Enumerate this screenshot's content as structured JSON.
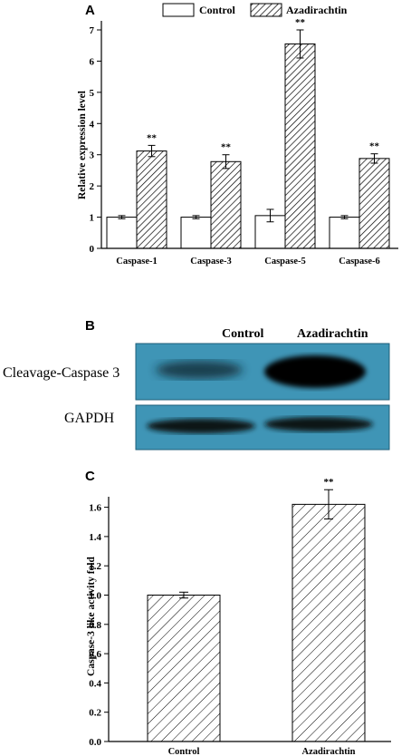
{
  "panels": {
    "a": "A",
    "b": "B",
    "c": "C"
  },
  "legend": {
    "control": "Control",
    "treated": "Azadirachtin"
  },
  "significance": "**",
  "blot": {
    "col_labels": [
      "Control",
      "Azadirachtin"
    ],
    "row_labels": [
      "Cleavage-Caspase 3",
      "GAPDH"
    ]
  },
  "chart_data": [
    {
      "type": "bar",
      "title": "",
      "xlabel": "",
      "ylabel": "Relative expression level",
      "ylim": [
        0,
        7
      ],
      "yticks": [
        "0",
        "1",
        "2",
        "3",
        "4",
        "5",
        "6",
        "7"
      ],
      "categories": [
        "Caspase-1",
        "Caspase-3",
        "Caspase-5",
        "Caspase-6"
      ],
      "series": [
        {
          "name": "Control",
          "pattern": "none",
          "values": [
            1.0,
            1.0,
            1.05,
            1.0
          ],
          "errors": [
            0.05,
            0.05,
            0.2,
            0.05
          ]
        },
        {
          "name": "Azadirachtin",
          "pattern": "hatched",
          "values": [
            3.12,
            2.78,
            6.55,
            2.88
          ],
          "errors": [
            0.18,
            0.22,
            0.45,
            0.15
          ]
        }
      ],
      "annotations": [
        "**",
        "**",
        "**",
        "**"
      ],
      "legend_position": "top"
    },
    {
      "type": "bar",
      "title": "",
      "xlabel": "",
      "ylabel": "Caspase-3 like activity fold",
      "ylim": [
        0,
        1.8
      ],
      "yticks": [
        "0.0",
        "0.2",
        "0.4",
        "0.6",
        "0.8",
        "1.0",
        "1.2",
        "1.4",
        "1.6"
      ],
      "categories": [
        "Control",
        "Azadirachtin"
      ],
      "series": [
        {
          "pattern": "hatched",
          "values": [
            1.0,
            1.62
          ],
          "errors": [
            0.02,
            0.1
          ]
        }
      ],
      "annotations": [
        "",
        "**"
      ]
    }
  ]
}
